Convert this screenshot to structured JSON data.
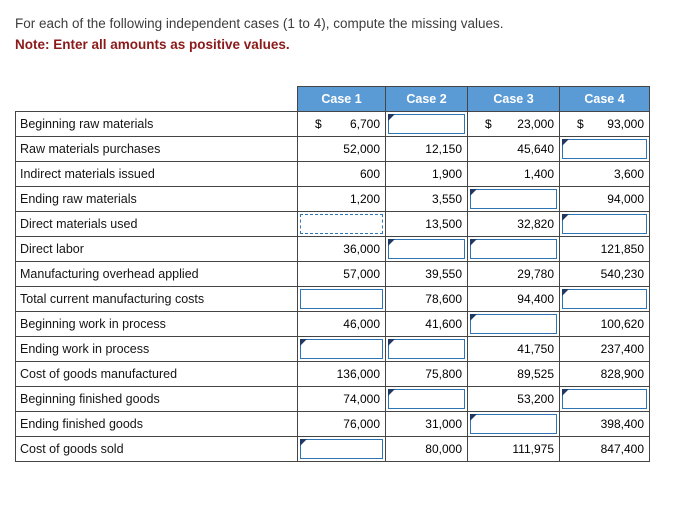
{
  "instructions": {
    "line1": "For each of the following independent cases (1 to 4), compute the missing values.",
    "note": "Note: Enter all amounts as positive values."
  },
  "table": {
    "corner_label": "",
    "columns": [
      "Case 1",
      "Case 2",
      "Case 3",
      "Case 4"
    ],
    "rows": [
      {
        "label": "Beginning raw materials",
        "cells": [
          {
            "type": "value",
            "dollar": true,
            "value": "6,700"
          },
          {
            "type": "input",
            "marker": true,
            "value": ""
          },
          {
            "type": "value",
            "dollar": true,
            "value": "23,000"
          },
          {
            "type": "value",
            "dollar": true,
            "value": "93,000"
          }
        ]
      },
      {
        "label": "Raw materials purchases",
        "cells": [
          {
            "type": "value",
            "value": "52,000"
          },
          {
            "type": "value",
            "value": "12,150"
          },
          {
            "type": "value",
            "value": "45,640"
          },
          {
            "type": "input",
            "marker": true,
            "value": ""
          }
        ]
      },
      {
        "label": "Indirect materials issued",
        "cells": [
          {
            "type": "value",
            "value": "600"
          },
          {
            "type": "value",
            "value": "1,900"
          },
          {
            "type": "value",
            "value": "1,400"
          },
          {
            "type": "value",
            "value": "3,600"
          }
        ]
      },
      {
        "label": "Ending raw materials",
        "cells": [
          {
            "type": "value",
            "value": "1,200"
          },
          {
            "type": "value",
            "value": "3,550"
          },
          {
            "type": "input",
            "marker": true,
            "value": ""
          },
          {
            "type": "value",
            "value": "94,000"
          }
        ]
      },
      {
        "label": "Direct materials used",
        "cells": [
          {
            "type": "input",
            "marker": false,
            "focused": true,
            "value": ""
          },
          {
            "type": "value",
            "value": "13,500"
          },
          {
            "type": "value",
            "value": "32,820"
          },
          {
            "type": "input",
            "marker": true,
            "value": ""
          }
        ]
      },
      {
        "label": "Direct labor",
        "cells": [
          {
            "type": "value",
            "value": "36,000"
          },
          {
            "type": "input",
            "marker": true,
            "value": ""
          },
          {
            "type": "input",
            "marker": true,
            "value": ""
          },
          {
            "type": "value",
            "value": "121,850"
          }
        ]
      },
      {
        "label": "Manufacturing overhead applied",
        "cells": [
          {
            "type": "value",
            "value": "57,000"
          },
          {
            "type": "value",
            "value": "39,550"
          },
          {
            "type": "value",
            "value": "29,780"
          },
          {
            "type": "value",
            "value": "540,230"
          }
        ]
      },
      {
        "label": "Total current manufacturing costs",
        "cells": [
          {
            "type": "input",
            "marker": false,
            "value": ""
          },
          {
            "type": "value",
            "value": "78,600"
          },
          {
            "type": "value",
            "value": "94,400"
          },
          {
            "type": "input",
            "marker": true,
            "value": ""
          }
        ]
      },
      {
        "label": "Beginning work in process",
        "cells": [
          {
            "type": "value",
            "value": "46,000"
          },
          {
            "type": "value",
            "value": "41,600"
          },
          {
            "type": "input",
            "marker": true,
            "value": ""
          },
          {
            "type": "value",
            "value": "100,620"
          }
        ]
      },
      {
        "label": "Ending work in process",
        "cells": [
          {
            "type": "input",
            "marker": true,
            "value": ""
          },
          {
            "type": "input",
            "marker": true,
            "value": ""
          },
          {
            "type": "value",
            "value": "41,750"
          },
          {
            "type": "value",
            "value": "237,400"
          }
        ]
      },
      {
        "label": "Cost of goods manufactured",
        "cells": [
          {
            "type": "value",
            "value": "136,000"
          },
          {
            "type": "value",
            "value": "75,800"
          },
          {
            "type": "value",
            "value": "89,525"
          },
          {
            "type": "value",
            "value": "828,900"
          }
        ]
      },
      {
        "label": "Beginning finished goods",
        "cells": [
          {
            "type": "value",
            "value": "74,000"
          },
          {
            "type": "input",
            "marker": true,
            "value": ""
          },
          {
            "type": "value",
            "value": "53,200"
          },
          {
            "type": "input",
            "marker": true,
            "value": ""
          }
        ]
      },
      {
        "label": "Ending finished goods",
        "cells": [
          {
            "type": "value",
            "value": "76,000"
          },
          {
            "type": "value",
            "value": "31,000"
          },
          {
            "type": "input",
            "marker": true,
            "value": ""
          },
          {
            "type": "value",
            "value": "398,400"
          }
        ]
      },
      {
        "label": "Cost of goods sold",
        "cells": [
          {
            "type": "input",
            "marker": true,
            "value": ""
          },
          {
            "type": "value",
            "value": "80,000"
          },
          {
            "type": "value",
            "value": "111,975"
          },
          {
            "type": "value",
            "value": "847,400"
          }
        ]
      }
    ]
  },
  "colors": {
    "header_bg": "#5B9BD5",
    "header_text": "#FFFFFF",
    "grid_border": "#454545",
    "input_border": "#2E75B6",
    "marker": "#1F3864",
    "note_text": "#8B1A1A"
  }
}
